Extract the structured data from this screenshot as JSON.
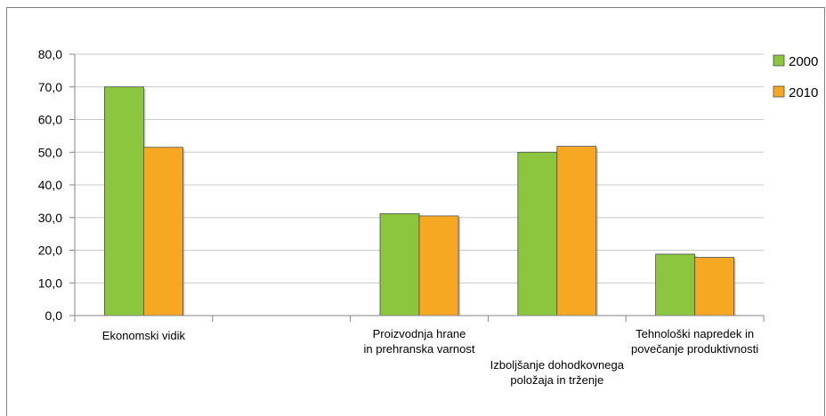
{
  "chart_data": {
    "type": "bar",
    "categories": [
      [
        "Ekonomski vidik"
      ],
      [],
      [
        "Proizvodnja hrane",
        "in prehranska varnost"
      ],
      [
        "Izboljšanje dohodkovnega",
        "položaja in trženje"
      ],
      [
        "Tehnološki napredek in",
        "povečanje produktivnosti"
      ]
    ],
    "series": [
      {
        "name": "2000",
        "values": [
          70.0,
          null,
          31.2,
          50.0,
          18.8
        ],
        "color": "#8cc63f"
      },
      {
        "name": "2010",
        "values": [
          51.5,
          null,
          30.5,
          51.8,
          17.8
        ],
        "color": "#f7a823"
      }
    ],
    "ylim": [
      0,
      80
    ],
    "yticks": [
      "0,0",
      "10,0",
      "20,0",
      "30,0",
      "40,0",
      "50,0",
      "60,0",
      "70,0",
      "80,0"
    ],
    "grid": true,
    "legend": "right",
    "title": "",
    "xlabel": "",
    "ylabel": ""
  }
}
